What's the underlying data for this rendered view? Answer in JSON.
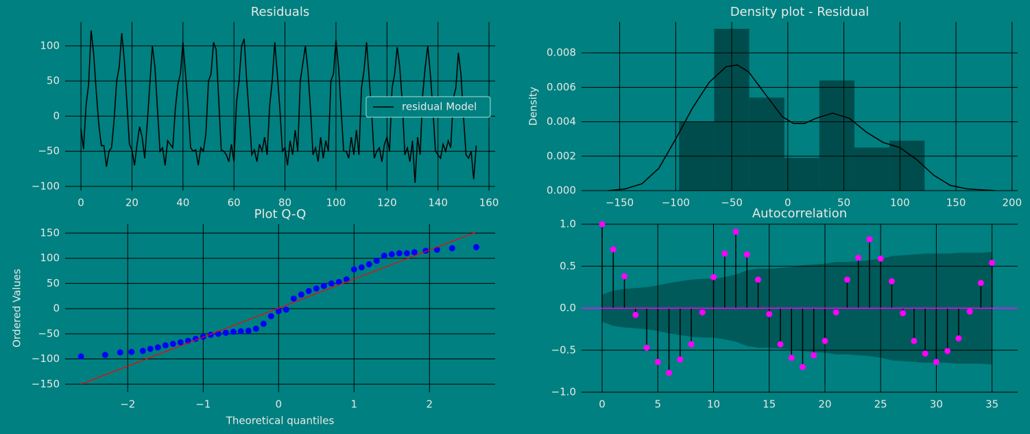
{
  "chart_data": [
    {
      "type": "line",
      "title": "Residuals",
      "x": [
        0,
        1,
        2,
        3,
        4,
        5,
        6,
        7,
        8,
        9,
        10,
        11,
        12,
        13,
        14,
        15,
        16,
        17,
        18,
        19,
        20,
        21,
        22,
        23,
        24,
        25,
        26,
        27,
        28,
        29,
        30,
        31,
        32,
        33,
        34,
        35,
        36,
        37,
        38,
        39,
        40,
        41,
        42,
        43,
        44,
        45,
        46,
        47,
        48,
        49,
        50,
        51,
        52,
        53,
        54,
        55,
        56,
        57,
        58,
        59,
        60,
        61,
        62,
        63,
        64,
        65,
        66,
        67,
        68,
        69,
        70,
        71,
        72,
        73,
        74,
        75,
        76,
        77,
        78,
        79,
        80,
        81,
        82,
        83,
        84,
        85,
        86,
        87,
        88,
        89,
        90,
        91,
        92,
        93,
        94,
        95,
        96,
        97,
        98,
        99,
        100,
        101,
        102,
        103,
        104,
        105,
        106,
        107,
        108,
        109,
        110,
        111,
        112,
        113,
        114,
        115,
        116,
        117,
        118,
        119,
        120,
        121,
        122,
        123,
        124,
        125,
        126,
        127,
        128,
        129,
        130,
        131,
        132,
        133,
        134,
        135,
        136,
        137,
        138,
        139,
        140,
        141,
        142,
        143,
        144,
        145,
        146,
        147,
        148,
        149,
        150,
        151,
        152,
        153,
        154,
        155
      ],
      "series": [
        {
          "name": "residual Model",
          "color": "#000000",
          "values": [
            -18,
            -47,
            15,
            45,
            122,
            88,
            35,
            -12,
            -42,
            -42,
            -72,
            -50,
            -45,
            -5,
            50,
            70,
            118,
            80,
            20,
            -40,
            -48,
            -70,
            -40,
            -15,
            -30,
            -60,
            -10,
            45,
            100,
            70,
            10,
            -50,
            -45,
            -70,
            -35,
            -40,
            -45,
            10,
            45,
            60,
            105,
            60,
            15,
            -45,
            -50,
            -48,
            -70,
            -45,
            -50,
            -25,
            50,
            60,
            105,
            95,
            25,
            -48,
            -50,
            -55,
            -65,
            -40,
            -65,
            20,
            50,
            100,
            110,
            50,
            0,
            -55,
            -48,
            -65,
            -40,
            -50,
            -30,
            -55,
            15,
            50,
            105,
            60,
            10,
            -50,
            -45,
            -70,
            -35,
            -55,
            -20,
            -50,
            50,
            75,
            100,
            65,
            10,
            -55,
            -45,
            -65,
            -30,
            -60,
            -35,
            -50,
            50,
            60,
            108,
            70,
            10,
            -50,
            -50,
            -60,
            -30,
            -55,
            -20,
            -55,
            40,
            65,
            105,
            55,
            5,
            -60,
            -50,
            -45,
            -65,
            -40,
            -30,
            -50,
            40,
            60,
            98,
            70,
            20,
            -55,
            -45,
            -65,
            -35,
            -95,
            -30,
            -55,
            30,
            70,
            100,
            60,
            10,
            -50,
            -55,
            -60,
            -40,
            -50,
            -35,
            -45,
            25,
            40,
            90,
            60,
            0,
            -55,
            -60,
            -50,
            -90,
            -42
          ]
        }
      ],
      "xlim": [
        -6.2,
        162.4
      ],
      "ylim": [
        -106,
        134
      ],
      "xticks": [
        0,
        20,
        40,
        60,
        80,
        100,
        120,
        140,
        160
      ],
      "yticks": [
        {
          "value": -100,
          "label": "−100"
        },
        {
          "value": -50,
          "label": "−50"
        },
        0,
        50,
        100
      ],
      "grid": true,
      "legend": "center right"
    },
    {
      "type": "histogram",
      "title": "Density plot - Residual",
      "ylabel": "Density",
      "bins": [
        -97,
        -65.7,
        -34.4,
        -3.1,
        28.1,
        59.4,
        90.7,
        122
      ],
      "values": [
        0.004,
        0.0094,
        0.0054,
        0.0019,
        0.0064,
        0.0025,
        0.0029
      ],
      "color": "#004c4c",
      "kde": {
        "color": "#000000",
        "x": [
          -160,
          -145,
          -130,
          -115,
          -100,
          -85,
          -70,
          -55,
          -45,
          -35,
          -20,
          -5,
          5,
          15,
          25,
          40,
          55,
          70,
          85,
          100,
          115,
          130,
          145,
          160,
          185
        ],
        "values": [
          0,
          0.0001,
          0.0004,
          0.0013,
          0.003,
          0.0048,
          0.0063,
          0.0072,
          0.0073,
          0.0069,
          0.0056,
          0.0043,
          0.0039,
          0.0039,
          0.0042,
          0.0045,
          0.0042,
          0.0034,
          0.0028,
          0.0025,
          0.0018,
          0.0009,
          0.0003,
          0.0001,
          0
        ]
      },
      "xlim": [
        -184,
        205
      ],
      "ylim": [
        0,
        0.0098
      ],
      "xticks": [
        {
          "value": -150,
          "label": "−150"
        },
        {
          "value": -100,
          "label": "−100"
        },
        {
          "value": -50,
          "label": "−50"
        },
        0,
        50,
        100,
        150,
        200
      ],
      "yticks": [
        {
          "value": 0,
          "label": "0.000"
        },
        0.002,
        0.004,
        0.006,
        0.008
      ],
      "grid": true
    },
    {
      "type": "scatter",
      "title": "Plot Q-Q",
      "xlabel": "Theoretical quantiles",
      "ylabel": "Ordered Values",
      "x": [
        -2.62,
        -2.3,
        -2.1,
        -1.95,
        -1.8,
        -1.7,
        -1.6,
        -1.5,
        -1.4,
        -1.3,
        -1.2,
        -1.1,
        -1.0,
        -0.9,
        -0.8,
        -0.7,
        -0.6,
        -0.5,
        -0.4,
        -0.3,
        -0.2,
        -0.1,
        0,
        0.1,
        0.2,
        0.3,
        0.4,
        0.5,
        0.6,
        0.7,
        0.8,
        0.9,
        1.0,
        1.1,
        1.2,
        1.3,
        1.4,
        1.5,
        1.6,
        1.7,
        1.8,
        1.95,
        2.1,
        2.3,
        2.62
      ],
      "values": [
        -95,
        -92,
        -87,
        -86,
        -84,
        -80,
        -77,
        -73,
        -70,
        -67,
        -64,
        -60,
        -56,
        -52,
        -50,
        -48,
        -46,
        -45,
        -44,
        -40,
        -30,
        -15,
        -5,
        -2,
        20,
        28,
        35,
        40,
        45,
        50,
        53,
        58,
        78,
        82,
        88,
        95,
        105,
        108,
        110,
        110,
        112,
        115,
        117,
        120,
        122
      ],
      "color": "#0000ff",
      "fit": {
        "color": "#ff0000",
        "x": [
          -2.62,
          2.62
        ],
        "values": [
          -150,
          152
        ]
      },
      "xlim": [
        -2.83,
        2.87
      ],
      "ylim": [
        -166,
        167.7
      ],
      "xticks": [
        {
          "value": -2,
          "label": "−2"
        },
        {
          "value": -1,
          "label": "−1"
        },
        0,
        1,
        2
      ],
      "yticks": [
        {
          "value": -150,
          "label": "−150"
        },
        {
          "value": -100,
          "label": "−100"
        },
        {
          "value": -50,
          "label": "−50"
        },
        0,
        50,
        100,
        150
      ],
      "grid": true
    },
    {
      "type": "stem",
      "title": "Autocorrelation",
      "x": [
        0,
        1,
        2,
        3,
        4,
        5,
        6,
        7,
        8,
        9,
        10,
        11,
        12,
        13,
        14,
        15,
        16,
        17,
        18,
        19,
        20,
        21,
        22,
        23,
        24,
        25,
        26,
        27,
        28,
        29,
        30,
        31,
        32,
        33,
        34,
        35
      ],
      "values": [
        1.0,
        0.7,
        0.38,
        -0.08,
        -0.47,
        -0.64,
        -0.77,
        -0.61,
        -0.43,
        -0.05,
        0.37,
        0.65,
        0.91,
        0.64,
        0.34,
        -0.07,
        -0.43,
        -0.59,
        -0.7,
        -0.56,
        -0.39,
        -0.05,
        0.34,
        0.6,
        0.82,
        0.59,
        0.32,
        -0.06,
        -0.39,
        -0.54,
        -0.64,
        -0.51,
        -0.36,
        -0.04,
        0.3,
        0.54
      ],
      "confidence": [
        0.16,
        0.21,
        0.23,
        0.24,
        0.25,
        0.27,
        0.3,
        0.32,
        0.34,
        0.35,
        0.35,
        0.37,
        0.4,
        0.45,
        0.47,
        0.47,
        0.48,
        0.49,
        0.51,
        0.52,
        0.53,
        0.55,
        0.55,
        0.56,
        0.57,
        0.59,
        0.62,
        0.63,
        0.64,
        0.65,
        0.65,
        0.65,
        0.66,
        0.66,
        0.66,
        0.67
      ],
      "color": "#ff00ff",
      "band_color": "#005a5a",
      "xlim": [
        -1.85,
        37.3
      ],
      "ylim": [
        -1,
        1
      ],
      "xticks": [
        0,
        5,
        10,
        15,
        20,
        25,
        30,
        35
      ],
      "yticks": [
        {
          "value": -1,
          "label": "−1.0"
        },
        {
          "value": -0.5,
          "label": "−0.5"
        },
        {
          "value": 0,
          "label": "0.0"
        },
        0.5,
        {
          "value": 1,
          "label": "1.0"
        }
      ],
      "grid": true
    }
  ]
}
